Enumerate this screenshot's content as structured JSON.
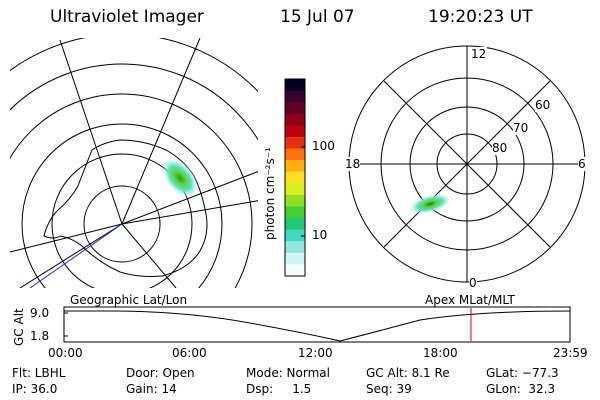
{
  "header": {
    "title": "Ultraviolet Imager",
    "date": "15 Jul 07",
    "time": "19:20:23 UT"
  },
  "left_panel": {
    "caption": "Geographic Lat/Lon"
  },
  "right_panel": {
    "caption": "Apex  MLat/MLT",
    "mlt_labels": {
      "top": "12",
      "right": "6",
      "bottom": "0",
      "left": "18"
    },
    "lat_labels": [
      "60",
      "70",
      "80"
    ]
  },
  "colorbar": {
    "unit_label": "photon cm⁻²s⁻¹",
    "tick_labels": [
      "100",
      "10"
    ],
    "colors": [
      "#000020",
      "#3a0030",
      "#600028",
      "#900018",
      "#c00010",
      "#e83010",
      "#ff7010",
      "#ffb010",
      "#ffe020",
      "#d8f020",
      "#90e020",
      "#40d030",
      "#20c878",
      "#40d8c0",
      "#90e8e0",
      "#d0f4f4",
      "#f4fcfc"
    ]
  },
  "altitude_strip": {
    "ylabel": "GC Alt",
    "y_ticks": [
      "9.0",
      "1.8"
    ],
    "x_ticks": [
      "00:00",
      "06:00",
      "12:00",
      "18:00",
      "23:59"
    ],
    "marker_color": "#e00000"
  },
  "info": {
    "row1": {
      "filter": "Flt: LBHL",
      "door": "Door: Open",
      "mode": "Mode: Normal",
      "gc_alt": "GC Alt: 8.1 Re",
      "glat": "GLat: −77.3"
    },
    "row2": {
      "ip": "IP: 36.0",
      "gain": "Gain: 14",
      "dsp": "Dsp:     1.5",
      "seq": "Seq: 39",
      "glon": "GLon:  32.3"
    }
  }
}
